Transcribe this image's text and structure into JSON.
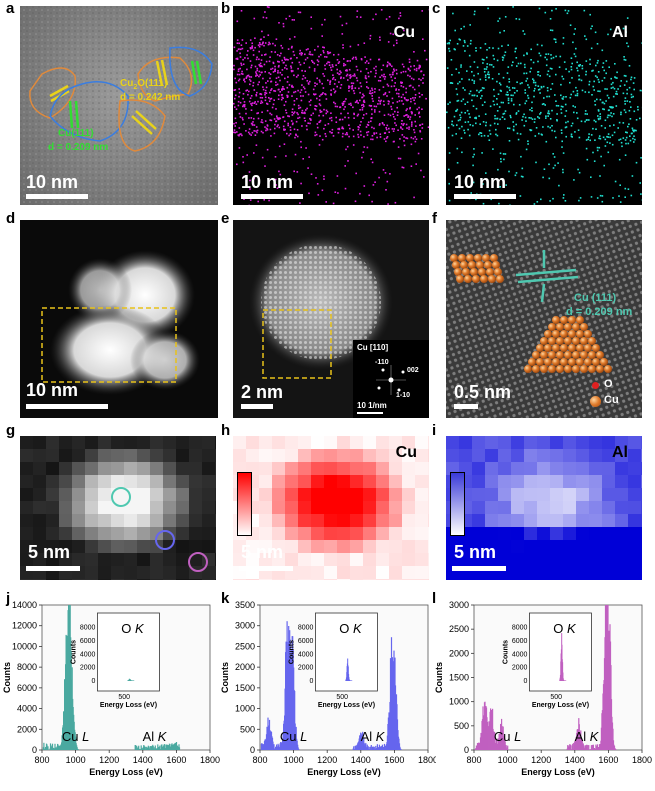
{
  "panel_labels": {
    "a": "a",
    "b": "b",
    "c": "c",
    "d": "d",
    "e": "e",
    "f": "f",
    "g": "g",
    "h": "h",
    "i": "i",
    "j": "j",
    "k": "k",
    "l": "l"
  },
  "row1": {
    "a": {
      "scale": "10 nm",
      "cu2o_label": "Cu",
      "cu2o_sub": "2",
      "cu2o_rest": "O(111)",
      "cu2o_d": "d = 0.242 nm",
      "cu_label": "Cu(111)",
      "cu_d": "d = 0.209 nm"
    },
    "b": {
      "element": "Cu",
      "scale": "10 nm"
    },
    "c": {
      "element": "Al",
      "scale": "10 nm"
    }
  },
  "row2": {
    "d": {
      "scale": "10 nm"
    },
    "e": {
      "scale": "2 nm",
      "fft_zone": "Cu [110]",
      "fft_110": "-110",
      "fft_002": "002",
      "fft_1m10": "1-10",
      "fft_scale": "10 1/nm"
    },
    "f": {
      "scale": "0.5 nm",
      "lattice_label": "Cu (111)",
      "lattice_d": "d = 0.209 nm",
      "legend_o": "O",
      "legend_cu": "Cu"
    }
  },
  "row3": {
    "g": {
      "scale": "5 nm"
    },
    "h": {
      "element": "Cu",
      "scale": "5 nm"
    },
    "i": {
      "element": "Al",
      "scale": "5 nm"
    }
  },
  "colors": {
    "cu_map": "#e020e0",
    "al_map": "#20e0d0",
    "yellow": "#e8d21a",
    "green": "#33dd33",
    "teal": "#4fc8b0",
    "blue_peak": "#6666ee",
    "pink_peak": "#c060c0",
    "teal_peak": "#4aa9a0"
  },
  "chart_data": [
    {
      "type": "area",
      "panel": "j",
      "color": "teal",
      "xlabel": "Energy Loss (eV)",
      "ylabel": "Counts",
      "xlim": [
        800,
        1800
      ],
      "ylim": [
        0,
        14000
      ],
      "xticks": [
        800,
        1000,
        1200,
        1400,
        1600,
        1800
      ],
      "yticks": [
        0,
        2000,
        4000,
        6000,
        8000,
        10000,
        12000,
        14000
      ],
      "peaks": [
        {
          "x": 960,
          "y": 13000
        },
        {
          "x": 940,
          "y": 7000
        },
        {
          "x": 980,
          "y": 2000
        },
        {
          "x": 1590,
          "y": 400
        },
        {
          "x": 1560,
          "y": 300
        }
      ],
      "annotations": {
        "cu": "Cu",
        "cu_it": "L",
        "al": "Al",
        "al_it": "K"
      },
      "inset": {
        "label_o": "O",
        "label_k": "K",
        "xlabel": "Energy Loss (eV)",
        "ylabel": "Counts",
        "yticks": [
          0,
          2000,
          4000,
          6000,
          8000
        ],
        "xtick": "500",
        "peak": {
          "x": 532,
          "y": 300
        }
      }
    },
    {
      "type": "area",
      "panel": "k",
      "color": "blue",
      "xlabel": "Energy Loss (eV)",
      "ylabel": "Counts",
      "xlim": [
        800,
        1800
      ],
      "ylim": [
        0,
        3500
      ],
      "xticks": [
        800,
        1000,
        1200,
        1400,
        1600,
        1800
      ],
      "yticks": [
        0,
        500,
        1000,
        1500,
        2000,
        2500,
        3000,
        3500
      ],
      "peaks": [
        {
          "x": 960,
          "y": 3000
        },
        {
          "x": 990,
          "y": 2300
        },
        {
          "x": 850,
          "y": 700
        },
        {
          "x": 1580,
          "y": 2100
        },
        {
          "x": 1600,
          "y": 1600
        },
        {
          "x": 1400,
          "y": 400
        }
      ],
      "annotations": {
        "cu": "Cu",
        "cu_it": "L",
        "al": "Al",
        "al_it": "K"
      },
      "inset": {
        "label_o": "O",
        "label_k": "K",
        "xlabel": "Energy Loss (eV)",
        "ylabel": "Counts",
        "yticks": [
          0,
          2000,
          4000,
          6000,
          8000
        ],
        "xtick": "500",
        "peak": {
          "x": 532,
          "y": 3800
        }
      }
    },
    {
      "type": "area",
      "panel": "l",
      "color": "pink",
      "xlabel": "Energy Loss (eV)",
      "ylabel": "Counts",
      "xlim": [
        800,
        1800
      ],
      "ylim": [
        0,
        3000
      ],
      "xticks": [
        800,
        1000,
        1200,
        1400,
        1600,
        1800
      ],
      "yticks": [
        0,
        500,
        1000,
        1500,
        2000,
        2500,
        3000
      ],
      "peaks": [
        {
          "x": 860,
          "y": 1050
        },
        {
          "x": 900,
          "y": 800
        },
        {
          "x": 960,
          "y": 500
        },
        {
          "x": 1580,
          "y": 2750
        },
        {
          "x": 1600,
          "y": 2400
        },
        {
          "x": 1420,
          "y": 500
        }
      ],
      "annotations": {
        "cu": "Cu",
        "cu_it": "L",
        "al": "Al",
        "al_it": "K"
      },
      "inset": {
        "label_o": "O",
        "label_k": "K",
        "xlabel": "Energy Loss (eV)",
        "ylabel": "Counts",
        "yticks": [
          0,
          2000,
          4000,
          6000,
          8000
        ],
        "xtick": "500",
        "peak": {
          "x": 532,
          "y": 8000
        }
      }
    }
  ]
}
